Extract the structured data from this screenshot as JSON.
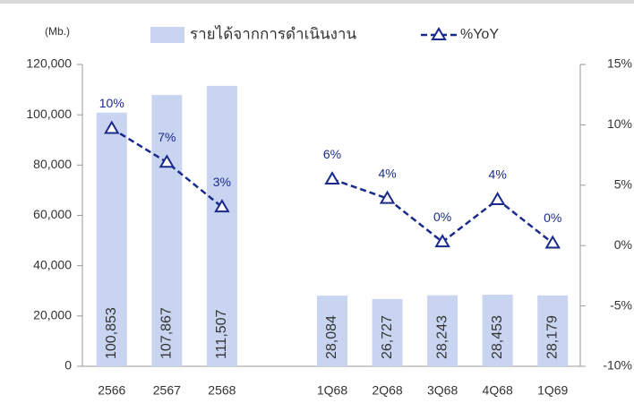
{
  "chart_data": {
    "type": "bar",
    "unit_label": "(Mb.)",
    "categories": [
      "2566",
      "2567",
      "2568",
      null,
      "1Q68",
      "2Q68",
      "3Q68",
      "4Q68",
      "1Q69"
    ],
    "series": [
      {
        "name": "รายได้จากการดำเนินงาน",
        "type": "bar",
        "color": "#c9d5f0",
        "values": [
          100853,
          107867,
          111507,
          null,
          28084,
          26727,
          28243,
          28453,
          28179
        ],
        "value_labels": [
          "100,853",
          "107,867",
          "111,507",
          null,
          "28,084",
          "26,727",
          "28,243",
          "28,453",
          "28,179"
        ]
      },
      {
        "name": "%YoY",
        "type": "line",
        "color": "#1a2a8c",
        "axis": "y2",
        "values": [
          9.7,
          6.9,
          3.2,
          null,
          5.5,
          3.9,
          0.3,
          3.8,
          0.2
        ],
        "value_labels": [
          "10%",
          "7%",
          "3%",
          null,
          "6%",
          "4%",
          "0%",
          "4%",
          "0%"
        ]
      }
    ],
    "ylim": [
      0,
      120000
    ],
    "yticks": [
      0,
      {
        "value": 20000,
        "label": "20,000"
      },
      {
        "value": 40000,
        "label": "40,000"
      },
      {
        "value": 60000,
        "label": "60,000"
      },
      {
        "value": 80000,
        "label": "80,000"
      },
      {
        "value": 100000,
        "label": "100,000"
      },
      {
        "value": 120000,
        "label": "120,000"
      }
    ],
    "y2lim": [
      -10,
      15
    ],
    "y2ticks": [
      {
        "value": -10,
        "label": "-10%"
      },
      {
        "value": -5,
        "label": "-5%"
      },
      {
        "value": 0,
        "label": "0%"
      },
      {
        "value": 5,
        "label": "5%"
      },
      {
        "value": 10,
        "label": "10%"
      },
      {
        "value": 15,
        "label": "15%"
      }
    ],
    "grid": false
  }
}
